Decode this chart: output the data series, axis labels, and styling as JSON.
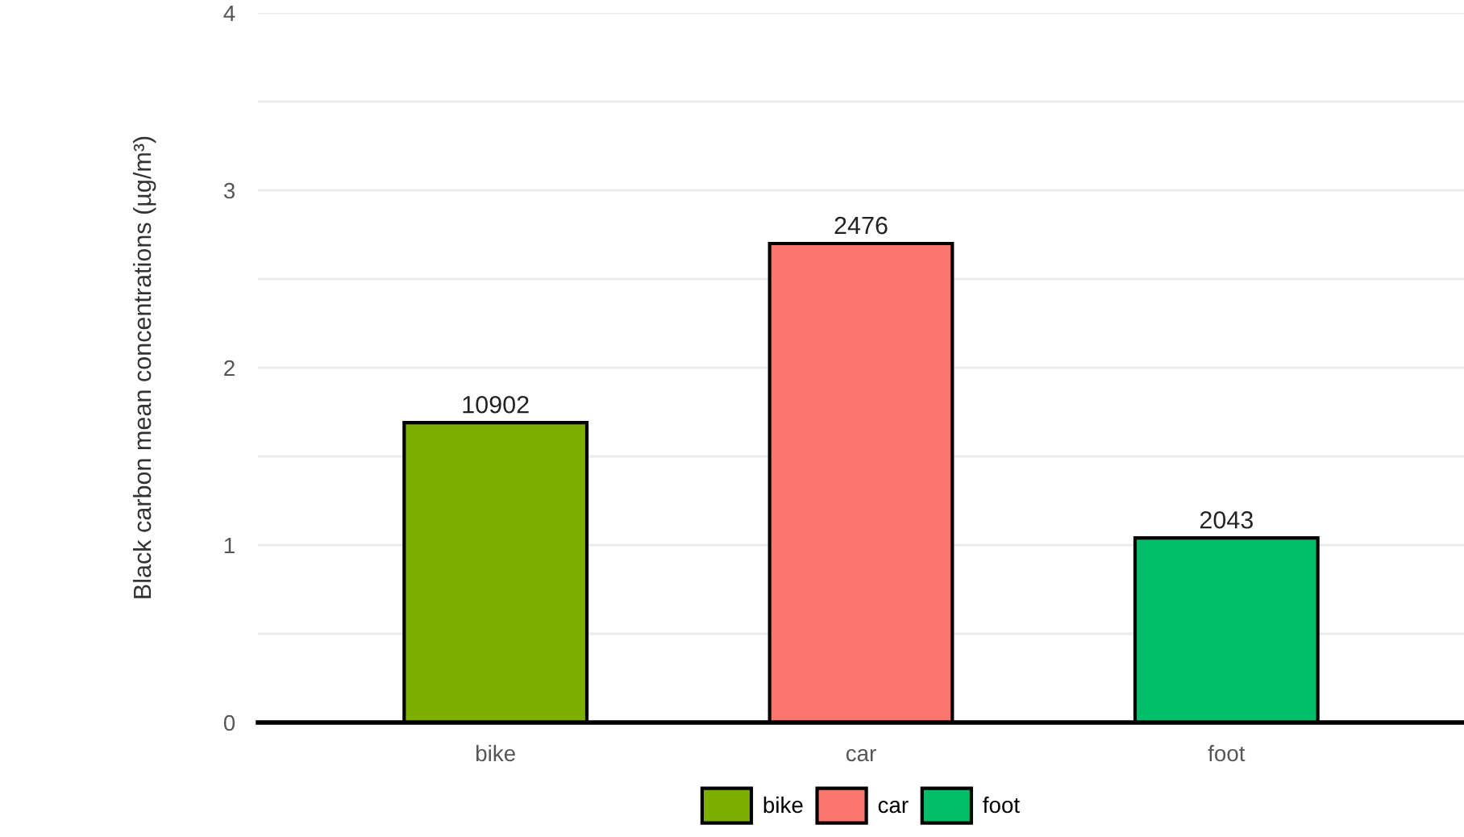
{
  "chart_data": {
    "type": "bar",
    "ylabel": "Black carbon mean concentrations (µg/m³)",
    "categories": [
      "bike",
      "car",
      "foot"
    ],
    "series": [
      {
        "name": "bike",
        "color": "#7cae00",
        "values": [
          1.69,
          null,
          null
        ]
      },
      {
        "name": "car",
        "color": "#f8766d",
        "values": [
          null,
          2.7,
          null
        ]
      },
      {
        "name": "foot",
        "color": "#00be67",
        "values": [
          null,
          null,
          1.04
        ]
      }
    ],
    "annotations": [
      {
        "text": "10902",
        "x": "bike",
        "y": 1.69
      },
      {
        "text": "2476",
        "x": "car",
        "y": 2.7
      },
      {
        "text": "2043",
        "x": "foot",
        "y": 1.04
      }
    ],
    "ylim": [
      0,
      4
    ],
    "yticks": [
      0,
      {
        "value": 0.5,
        "label": null
      },
      1,
      {
        "value": 1.5,
        "label": null
      },
      2,
      {
        "value": 2.5,
        "label": null
      },
      3,
      {
        "value": 3.5,
        "label": null
      },
      4
    ],
    "grid": "y",
    "legend": "bottom"
  }
}
